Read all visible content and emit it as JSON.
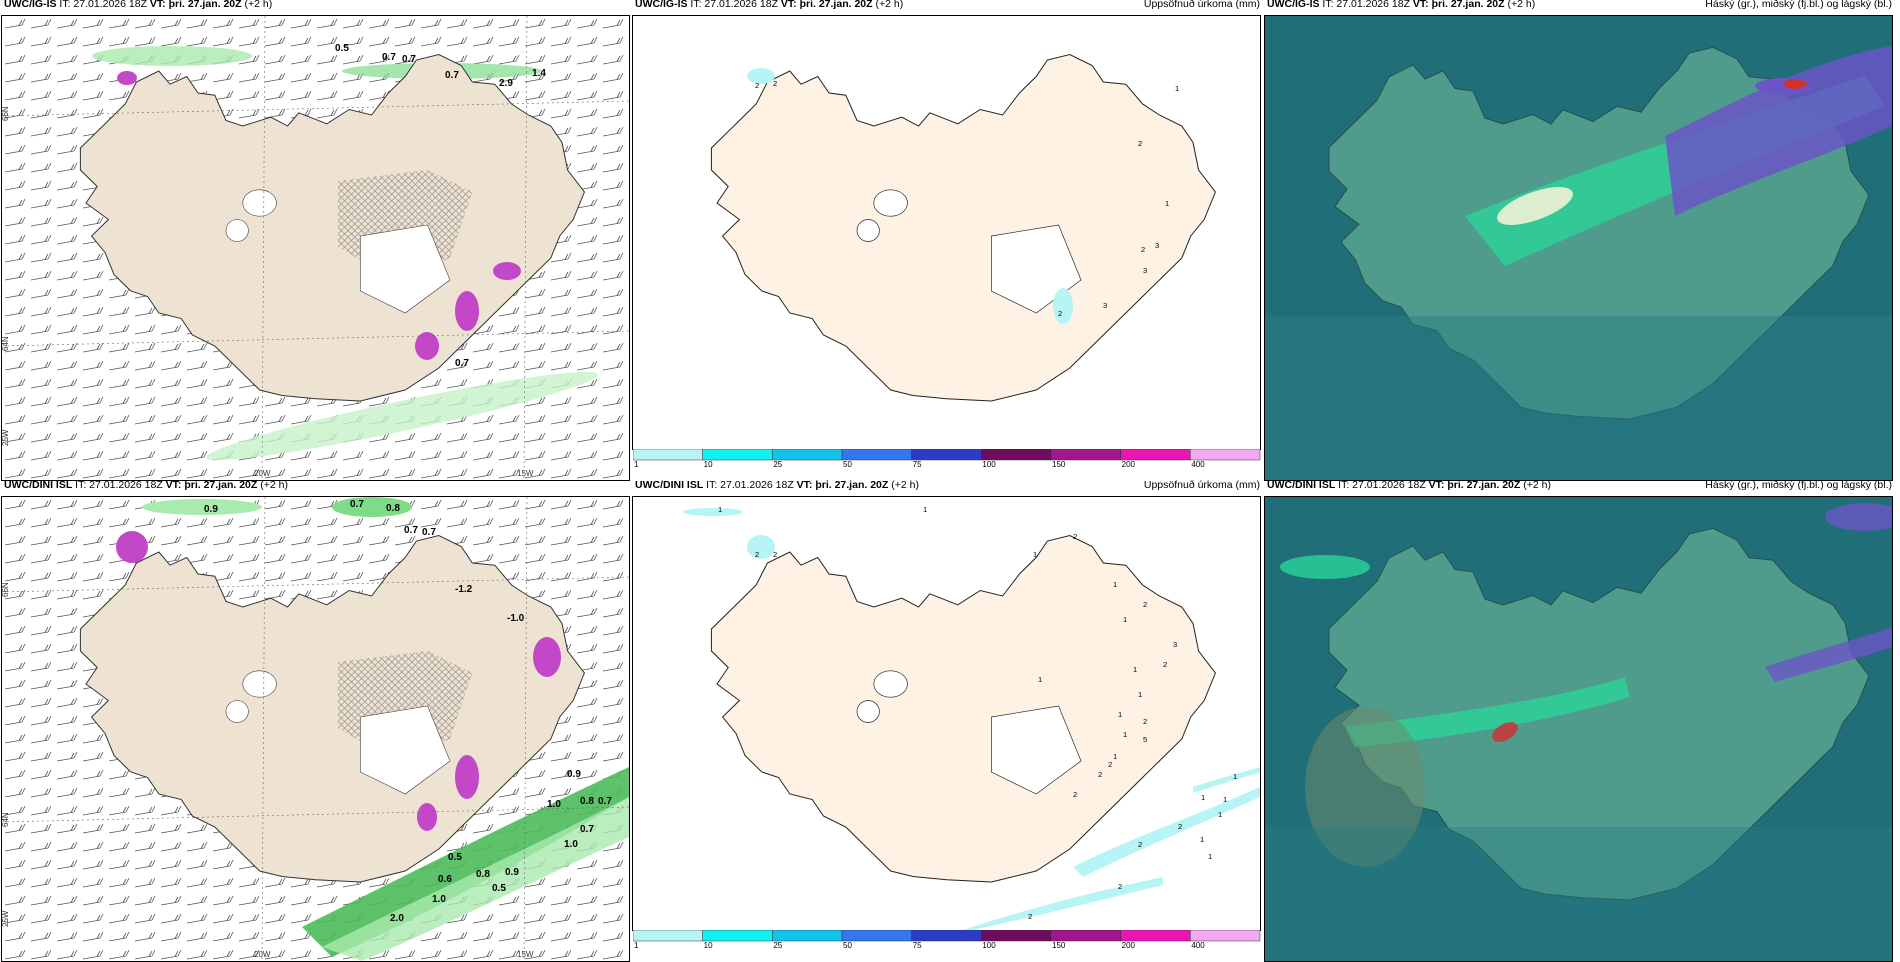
{
  "common": {
    "it_label": "IT: 27.01.2026 18Z",
    "vt_label": "VT: þri. 27.jan. 20Z",
    "lead_label": "(+2 h)"
  },
  "rows": [
    {
      "model": "UWC/IG-IS",
      "model_cloud": "UWC/IG-IS"
    },
    {
      "model": "UWC/DINI ISL",
      "model_cloud": "UWC/DINI ISL"
    }
  ],
  "precip_title": "Uppsöfnuð úrkoma (mm)",
  "cloud_title": "Háský (gr.), miðský (fj.bl.) og lágský (bl.)",
  "axes": {
    "lat66": "66N",
    "lat64": "64N",
    "lon20": "20W",
    "lon15": "15W",
    "lon25": "25W"
  },
  "colorbar": {
    "levels": [
      "1",
      "10",
      "25",
      "50",
      "75",
      "100",
      "150",
      "200",
      "400"
    ],
    "colors": [
      "#b6f4f6",
      "#0ef2f2",
      "#11c4ed",
      "#3476ee",
      "#2b3dc7",
      "#6d0b5e",
      "#a3158f",
      "#ee13b3",
      "#f2a9f2"
    ]
  },
  "colors": {
    "land": "#eee3d2",
    "land_precip": "#fdf2e4",
    "sea_cloud": "#1f6e78",
    "land_cloud": "#4f9c8d",
    "low_cloud": "#2bd49a",
    "mid_cloud": "#6a55c6",
    "green_precip": "#7ddc88",
    "magenta_precip": "#c348c8"
  },
  "wind_labels_top": [
    "0.5",
    "0.7",
    "0.7",
    "0.7",
    "2.9",
    "1.4",
    "0.7"
  ],
  "wind_labels_bottom": [
    "0.9",
    "0.7",
    "0.8",
    "0.7",
    "0.7",
    "-1.2",
    "-1.0",
    "0.9",
    "1.0",
    "0.8",
    "0.7",
    "0.7",
    "1.0",
    "0.5",
    "0.6",
    "0.8",
    "0.9",
    "0.5",
    "1.0",
    "2.0"
  ],
  "precip_labels_top": [
    "2",
    "2",
    "2",
    "1",
    "1",
    "2",
    "3",
    "3",
    "2",
    "3"
  ],
  "precip_labels_bottom": [
    "1",
    "1",
    "2",
    "2",
    "2",
    "1",
    "1",
    "1",
    "1",
    "1",
    "2",
    "3",
    "2",
    "1",
    "1",
    "2",
    "5",
    "1",
    "1",
    "2",
    "2",
    "2",
    "1",
    "1",
    "1",
    "1",
    "1",
    "1",
    "2",
    "2",
    "2",
    "2"
  ]
}
